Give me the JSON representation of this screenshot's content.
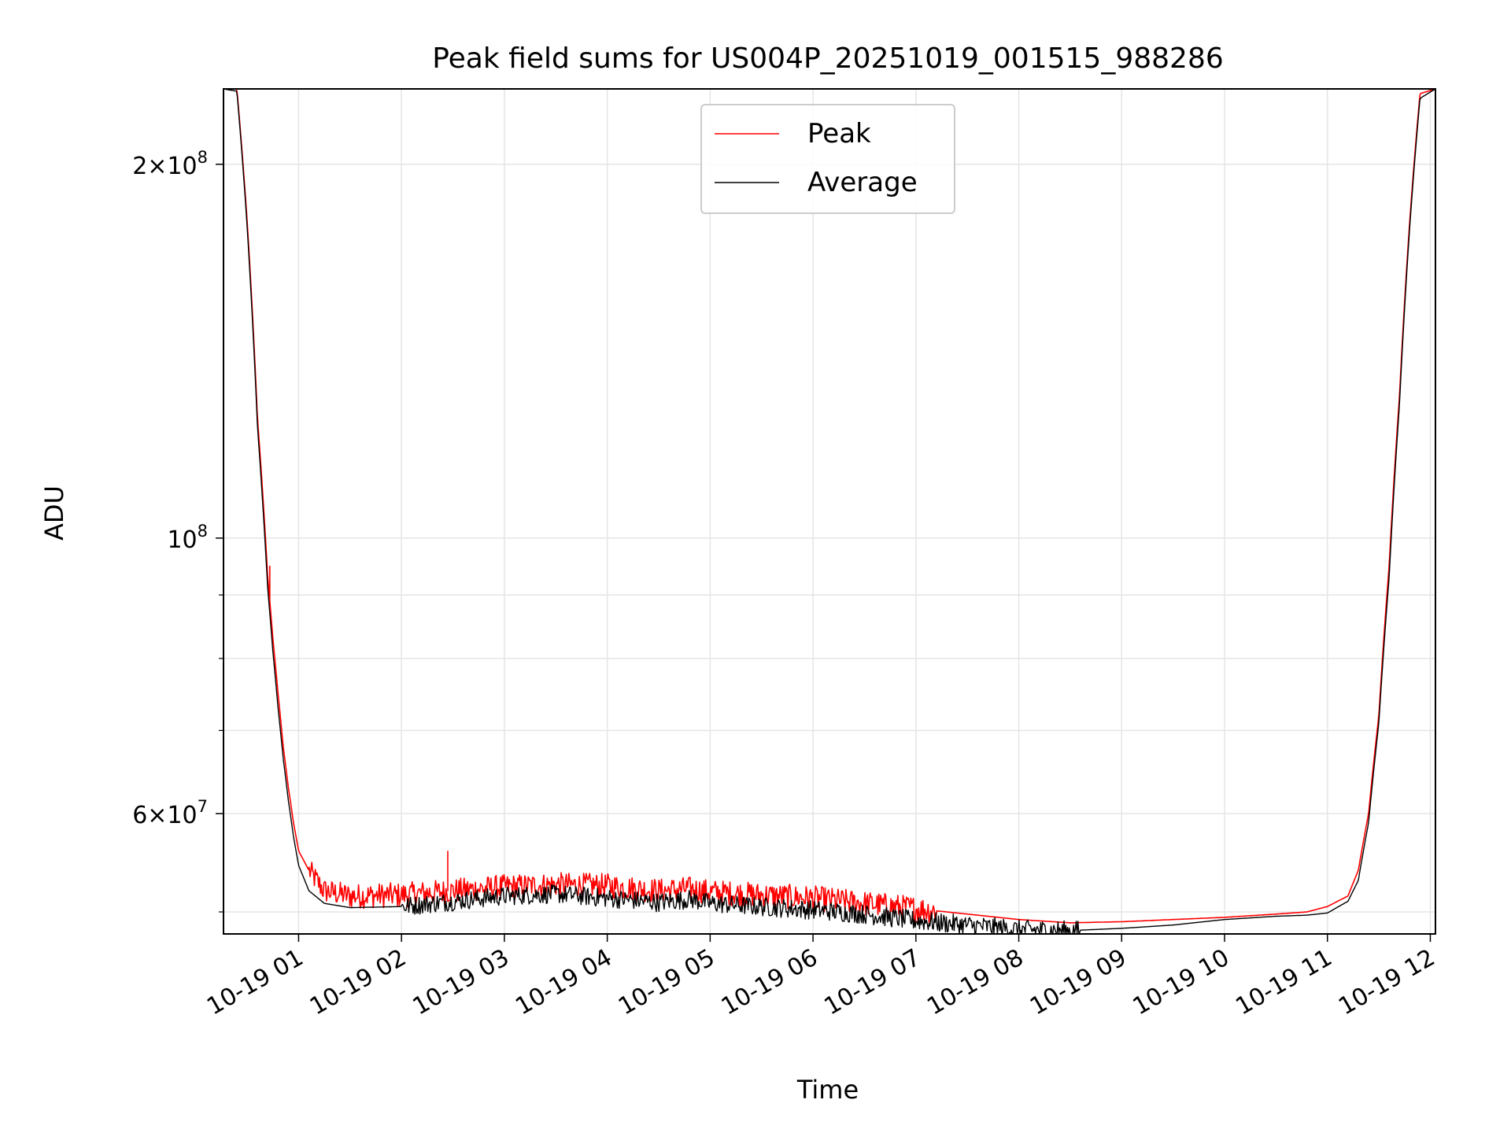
{
  "chart_data": {
    "type": "line",
    "title": "Peak field sums for US004P_20251019_001515_988286",
    "xlabel": "Time",
    "ylabel": "ADU",
    "yscale": "log",
    "ylim": [
      48000000,
      230000000
    ],
    "xlim_hours": [
      0.27,
      12.05
    ],
    "grid": true,
    "legend_location": "upper center",
    "x_ticks": [
      {
        "hour": 1,
        "label": "10-19 01"
      },
      {
        "hour": 2,
        "label": "10-19 02"
      },
      {
        "hour": 3,
        "label": "10-19 03"
      },
      {
        "hour": 4,
        "label": "10-19 04"
      },
      {
        "hour": 5,
        "label": "10-19 05"
      },
      {
        "hour": 6,
        "label": "10-19 06"
      },
      {
        "hour": 7,
        "label": "10-19 07"
      },
      {
        "hour": 8,
        "label": "10-19 08"
      },
      {
        "hour": 9,
        "label": "10-19 09"
      },
      {
        "hour": 10,
        "label": "10-19 10"
      },
      {
        "hour": 11,
        "label": "10-19 11"
      },
      {
        "hour": 12,
        "label": "10-19 12"
      }
    ],
    "y_ticks": [
      {
        "value": 200000000,
        "base": "2×10",
        "exp": "8"
      },
      {
        "value": 100000000,
        "base": "10",
        "exp": "8"
      },
      {
        "value": 60000000,
        "base": "6×10",
        "exp": "7"
      }
    ],
    "y_minor_ticks": [
      50000000,
      70000000,
      80000000,
      90000000
    ],
    "series": [
      {
        "name": "Peak",
        "color": "#ff0000",
        "x_hours": [
          0.27,
          0.4,
          0.5,
          0.6,
          0.7,
          0.75,
          0.8,
          0.85,
          0.9,
          0.95,
          1.0,
          1.1,
          1.25,
          1.5,
          2.0,
          2.5,
          3.0,
          3.5,
          4.0,
          4.5,
          4.8,
          5.0,
          5.5,
          6.0,
          6.5,
          7.0,
          7.5,
          8.0,
          8.5,
          9.0,
          9.5,
          10.0,
          10.5,
          10.8,
          11.0,
          11.2,
          11.3,
          11.4,
          11.5,
          11.6,
          11.7,
          11.8,
          11.9,
          12.05
        ],
        "values": [
          230000000,
          230000000,
          180000000,
          125000000,
          93000000,
          83000000,
          75000000,
          68000000,
          63000000,
          59000000,
          56000000,
          54000000,
          52000000,
          51500000,
          51600000,
          52000000,
          52400000,
          52600000,
          52500000,
          52000000,
          52200000,
          51900000,
          51600000,
          51300000,
          50800000,
          50300000,
          49800000,
          49300000,
          49000000,
          49100000,
          49300000,
          49500000,
          49800000,
          50000000,
          50500000,
          51500000,
          54000000,
          60000000,
          72000000,
          95000000,
          130000000,
          180000000,
          228000000,
          230000000
        ]
      },
      {
        "name": "Average",
        "color": "#000000",
        "x_hours": [
          0.27,
          0.4,
          0.5,
          0.6,
          0.7,
          0.75,
          0.8,
          0.85,
          0.9,
          0.95,
          1.0,
          1.1,
          1.25,
          1.5,
          2.0,
          2.5,
          3.0,
          3.5,
          4.0,
          4.5,
          4.8,
          5.0,
          5.5,
          6.0,
          6.5,
          7.0,
          7.5,
          8.0,
          8.5,
          9.0,
          9.5,
          10.0,
          10.5,
          10.8,
          11.0,
          11.2,
          11.3,
          11.4,
          11.5,
          11.6,
          11.7,
          11.8,
          11.9,
          12.05
        ],
        "values": [
          230000000,
          229000000,
          178000000,
          123000000,
          91000000,
          81000000,
          73000000,
          66500000,
          61500000,
          57500000,
          54500000,
          52000000,
          50800000,
          50400000,
          50500000,
          51000000,
          51500000,
          51700000,
          51300000,
          50900000,
          51200000,
          50800000,
          50500000,
          50200000,
          49800000,
          49200000,
          48800000,
          48400000,
          48300000,
          48500000,
          48800000,
          49300000,
          49600000,
          49700000,
          49900000,
          51000000,
          53000000,
          59000000,
          71000000,
          93000000,
          128000000,
          178000000,
          226000000,
          230000000
        ]
      }
    ],
    "noise_bands": [
      {
        "series": "Peak",
        "x_range_hours": [
          1.1,
          7.2
        ],
        "amplitude_values": 1200000
      },
      {
        "series": "Average",
        "x_range_hours": [
          2.0,
          8.6
        ],
        "amplitude_values": 900000
      }
    ],
    "annotations": [
      {
        "series": "Peak",
        "type": "spike",
        "hour": 2.45,
        "value": 56000000
      },
      {
        "series": "Peak",
        "type": "spike",
        "hour": 0.72,
        "value": 95000000
      }
    ]
  }
}
